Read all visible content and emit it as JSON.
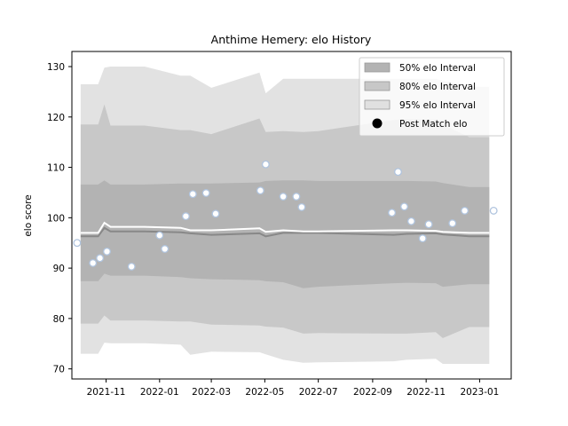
{
  "chart_data": {
    "type": "area",
    "title": "Anthime Hemery: elo History",
    "xlabel": "",
    "ylabel": "elo score",
    "x_ticks": [
      "2021-11",
      "2022-01",
      "2022-03",
      "2022-05",
      "2022-07",
      "2022-09",
      "2022-11",
      "2023-01"
    ],
    "y_ticks": [
      "70",
      "80",
      "90",
      "100",
      "110",
      "120",
      "130"
    ],
    "xlim": [
      "2021-09-23",
      "2023-02-06"
    ],
    "ylim": [
      68,
      133
    ],
    "grid": false,
    "legend_placement": "top-right",
    "legend": [
      {
        "label": "50% elo Interval",
        "color": "#b3b3b3",
        "kind": "patch"
      },
      {
        "label": "80% elo Interval",
        "color": "#c7c7c7",
        "kind": "patch"
      },
      {
        "label": "95% elo Interval",
        "color": "#e0e0e0",
        "kind": "patch"
      },
      {
        "label": "Post Match elo",
        "color": "#000000",
        "kind": "marker"
      }
    ],
    "colors": {
      "band50": "#b3b3b3",
      "band80": "#c8c8c8",
      "band95": "#e2e2e2",
      "mean_line": "#ffffff",
      "median_line": "#888888",
      "point_fill": "#ffffff",
      "point_edge": "#b0c4de"
    },
    "interval_series": {
      "dates": [
        "2021-10-03",
        "2021-10-23",
        "2021-10-30",
        "2021-11-06",
        "2021-12-15",
        "2022-01-25",
        "2022-02-05",
        "2022-03-01",
        "2022-04-25",
        "2022-05-02",
        "2022-05-22",
        "2022-06-14",
        "2022-07-01",
        "2022-09-25",
        "2022-10-10",
        "2022-11-12",
        "2022-11-20",
        "2022-12-20",
        "2023-01-12"
      ],
      "mean": [
        97.0,
        97.0,
        99.0,
        98.2,
        98.2,
        98.0,
        97.5,
        97.5,
        97.9,
        97.2,
        97.5,
        97.3,
        97.3,
        97.5,
        97.5,
        97.4,
        97.2,
        97.0,
        97.0
      ],
      "median": [
        96.3,
        96.3,
        98.0,
        97.3,
        97.3,
        97.1,
        96.9,
        96.6,
        96.9,
        96.3,
        97.0,
        97.0,
        97.0,
        96.6,
        96.8,
        96.9,
        96.7,
        96.3,
        96.3
      ],
      "p50_low": [
        87.4,
        87.4,
        88.9,
        88.5,
        88.5,
        88.2,
        88.0,
        87.8,
        87.6,
        87.4,
        87.2,
        86.0,
        86.3,
        87.0,
        87.1,
        87.0,
        86.3,
        86.8,
        86.8
      ],
      "p50_high": [
        106.6,
        106.6,
        107.4,
        106.6,
        106.6,
        106.8,
        106.8,
        106.8,
        107.0,
        107.3,
        107.4,
        107.4,
        107.3,
        107.3,
        107.3,
        107.2,
        106.9,
        106.1,
        106.1
      ],
      "p80_low": [
        79.0,
        79.0,
        80.6,
        79.6,
        79.6,
        79.4,
        79.4,
        78.8,
        78.6,
        78.4,
        78.2,
        77.0,
        77.1,
        77.0,
        77.0,
        77.3,
        76.1,
        78.3,
        78.3
      ],
      "p80_high": [
        118.5,
        118.5,
        122.5,
        118.3,
        118.3,
        117.4,
        117.4,
        116.6,
        119.7,
        117.0,
        117.2,
        117.0,
        117.2,
        119.4,
        119.6,
        119.5,
        118.5,
        116.0,
        116.0
      ],
      "p95_low": [
        73.0,
        73.0,
        75.2,
        75.1,
        75.1,
        74.8,
        72.8,
        73.4,
        73.3,
        72.9,
        71.8,
        71.2,
        71.3,
        71.5,
        71.8,
        72.0,
        71.0,
        71.0,
        71.0
      ],
      "p95_high": [
        126.5,
        126.5,
        129.8,
        130.0,
        130.0,
        128.2,
        128.2,
        125.8,
        128.8,
        124.7,
        127.6,
        127.6,
        127.6,
        127.6,
        127.6,
        127.6,
        127.2,
        126.0,
        126.0
      ]
    },
    "points": [
      {
        "x": "2021-09-29",
        "y": 95.0
      },
      {
        "x": "2021-10-17",
        "y": 91.0
      },
      {
        "x": "2021-10-25",
        "y": 92.0
      },
      {
        "x": "2021-11-02",
        "y": 93.3
      },
      {
        "x": "2021-11-30",
        "y": 90.3
      },
      {
        "x": "2022-01-01",
        "y": 96.5
      },
      {
        "x": "2022-01-07",
        "y": 93.8
      },
      {
        "x": "2022-01-31",
        "y": 100.3
      },
      {
        "x": "2022-02-08",
        "y": 104.7
      },
      {
        "x": "2022-02-23",
        "y": 104.9
      },
      {
        "x": "2022-03-06",
        "y": 100.8
      },
      {
        "x": "2022-04-26",
        "y": 105.4
      },
      {
        "x": "2022-05-02",
        "y": 110.6
      },
      {
        "x": "2022-05-22",
        "y": 104.2
      },
      {
        "x": "2022-06-06",
        "y": 104.2
      },
      {
        "x": "2022-06-12",
        "y": 102.1
      },
      {
        "x": "2022-09-23",
        "y": 101.0
      },
      {
        "x": "2022-09-30",
        "y": 109.1
      },
      {
        "x": "2022-10-07",
        "y": 102.2
      },
      {
        "x": "2022-10-15",
        "y": 99.3
      },
      {
        "x": "2022-10-28",
        "y": 95.9
      },
      {
        "x": "2022-11-04",
        "y": 98.7
      },
      {
        "x": "2022-12-01",
        "y": 98.9
      },
      {
        "x": "2022-12-15",
        "y": 101.4
      },
      {
        "x": "2023-01-17",
        "y": 101.4
      }
    ]
  }
}
